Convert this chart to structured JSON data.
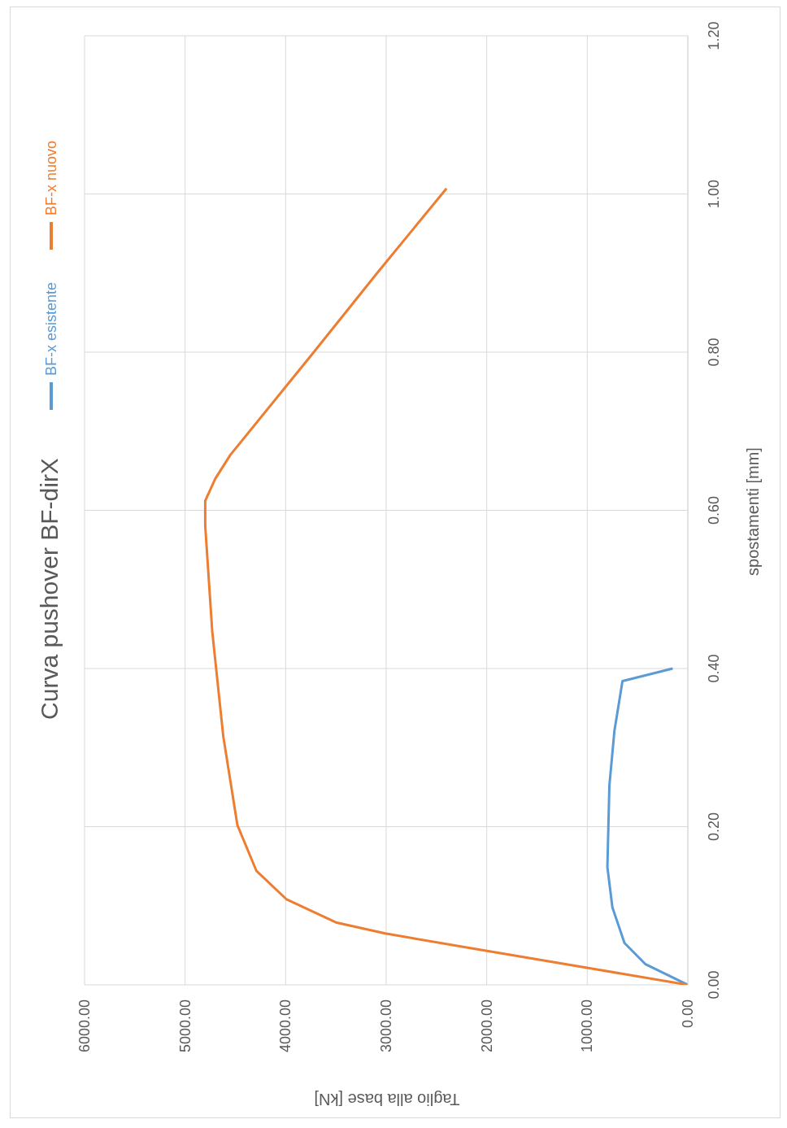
{
  "chart_data": {
    "type": "line",
    "title": "Curva pushover BF-dirX",
    "xlabel": "Taglio alla base [kN]",
    "ylabel": "spostamenti [mm]",
    "series": [
      {
        "name": "BF-x esistente",
        "color": "#5b9bd5",
        "x": [
          0,
          420,
          630,
          750,
          800,
          780,
          730,
          650,
          150
        ],
        "values": [
          0,
          0.026,
          0.053,
          0.098,
          0.149,
          0.252,
          0.321,
          0.384,
          0.4
        ]
      },
      {
        "name": "BF-x nuovo",
        "color": "#ed7d31",
        "x": [
          0,
          930,
          2140,
          3010,
          3500,
          3990,
          4290,
          4480,
          4620,
          4730,
          4800,
          4800,
          4700,
          4550,
          3720,
          3090,
          2400
        ],
        "values": [
          0,
          0.02,
          0.046,
          0.065,
          0.079,
          0.108,
          0.144,
          0.202,
          0.314,
          0.447,
          0.581,
          0.612,
          0.64,
          0.67,
          0.8,
          0.9,
          1.007
        ]
      }
    ],
    "ylim": [
      0,
      1.2
    ],
    "yticks": [
      {
        "value": 0,
        "label": "0.00"
      },
      {
        "value": 0.2,
        "label": "0.20"
      },
      {
        "value": 0.4,
        "label": "0.40"
      },
      {
        "value": 0.6,
        "label": "0.60"
      },
      {
        "value": 0.8,
        "label": "0.80"
      },
      {
        "value": 1,
        "label": "1.00"
      },
      {
        "value": 1.2,
        "label": "1.20"
      }
    ],
    "xlim": [
      6000,
      0
    ],
    "xticks": [
      {
        "value": 6000,
        "label": "6000.00"
      },
      {
        "value": 5000,
        "label": "5000.00"
      },
      {
        "value": 4000,
        "label": "4000.00"
      },
      {
        "value": 3000,
        "label": "3000.00"
      },
      {
        "value": 2000,
        "label": "2000.00"
      },
      {
        "value": 1000,
        "label": "1000.00"
      },
      {
        "value": 0,
        "label": "0.00"
      }
    ],
    "grid": true,
    "legend": "top left",
    "marker": "none",
    "line_style": "solid"
  }
}
